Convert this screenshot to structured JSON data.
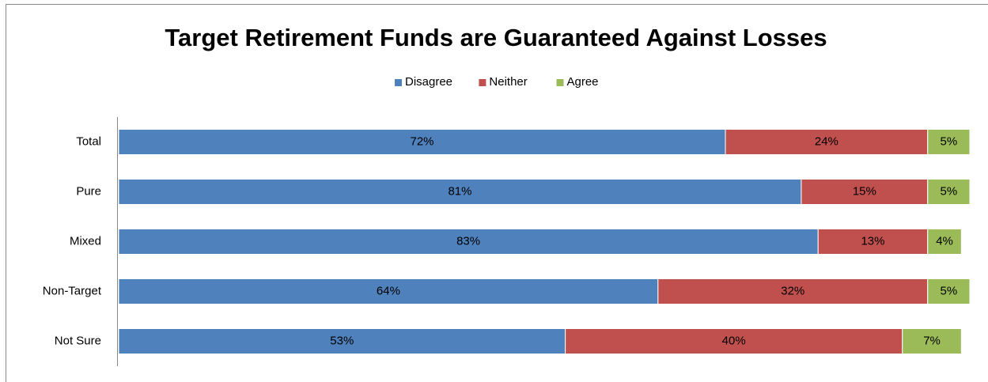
{
  "chart_data": {
    "type": "stacked-bar",
    "orientation": "horizontal",
    "title": "Target Retirement Funds are Guaranteed Against Losses",
    "categories": [
      "Total",
      "Pure",
      "Mixed",
      "Non-Target",
      "Not Sure"
    ],
    "series": [
      {
        "name": "Disagree",
        "color": "#4f81bd",
        "values": [
          72,
          81,
          83,
          64,
          53
        ],
        "value_labels": [
          "72%",
          "81%",
          "83%",
          "64%",
          "53%"
        ]
      },
      {
        "name": "Neither",
        "color": "#c0504d",
        "values": [
          24,
          15,
          13,
          32,
          40
        ],
        "value_labels": [
          "24%",
          "15%",
          "13%",
          "32%",
          "40%"
        ]
      },
      {
        "name": "Agree",
        "color": "#9bbb59",
        "values": [
          5,
          5,
          4,
          5,
          7
        ],
        "value_labels": [
          "5%",
          "5%",
          "4%",
          "5%",
          "7%"
        ]
      }
    ],
    "xlim": [
      0,
      101
    ],
    "legend": "top"
  }
}
